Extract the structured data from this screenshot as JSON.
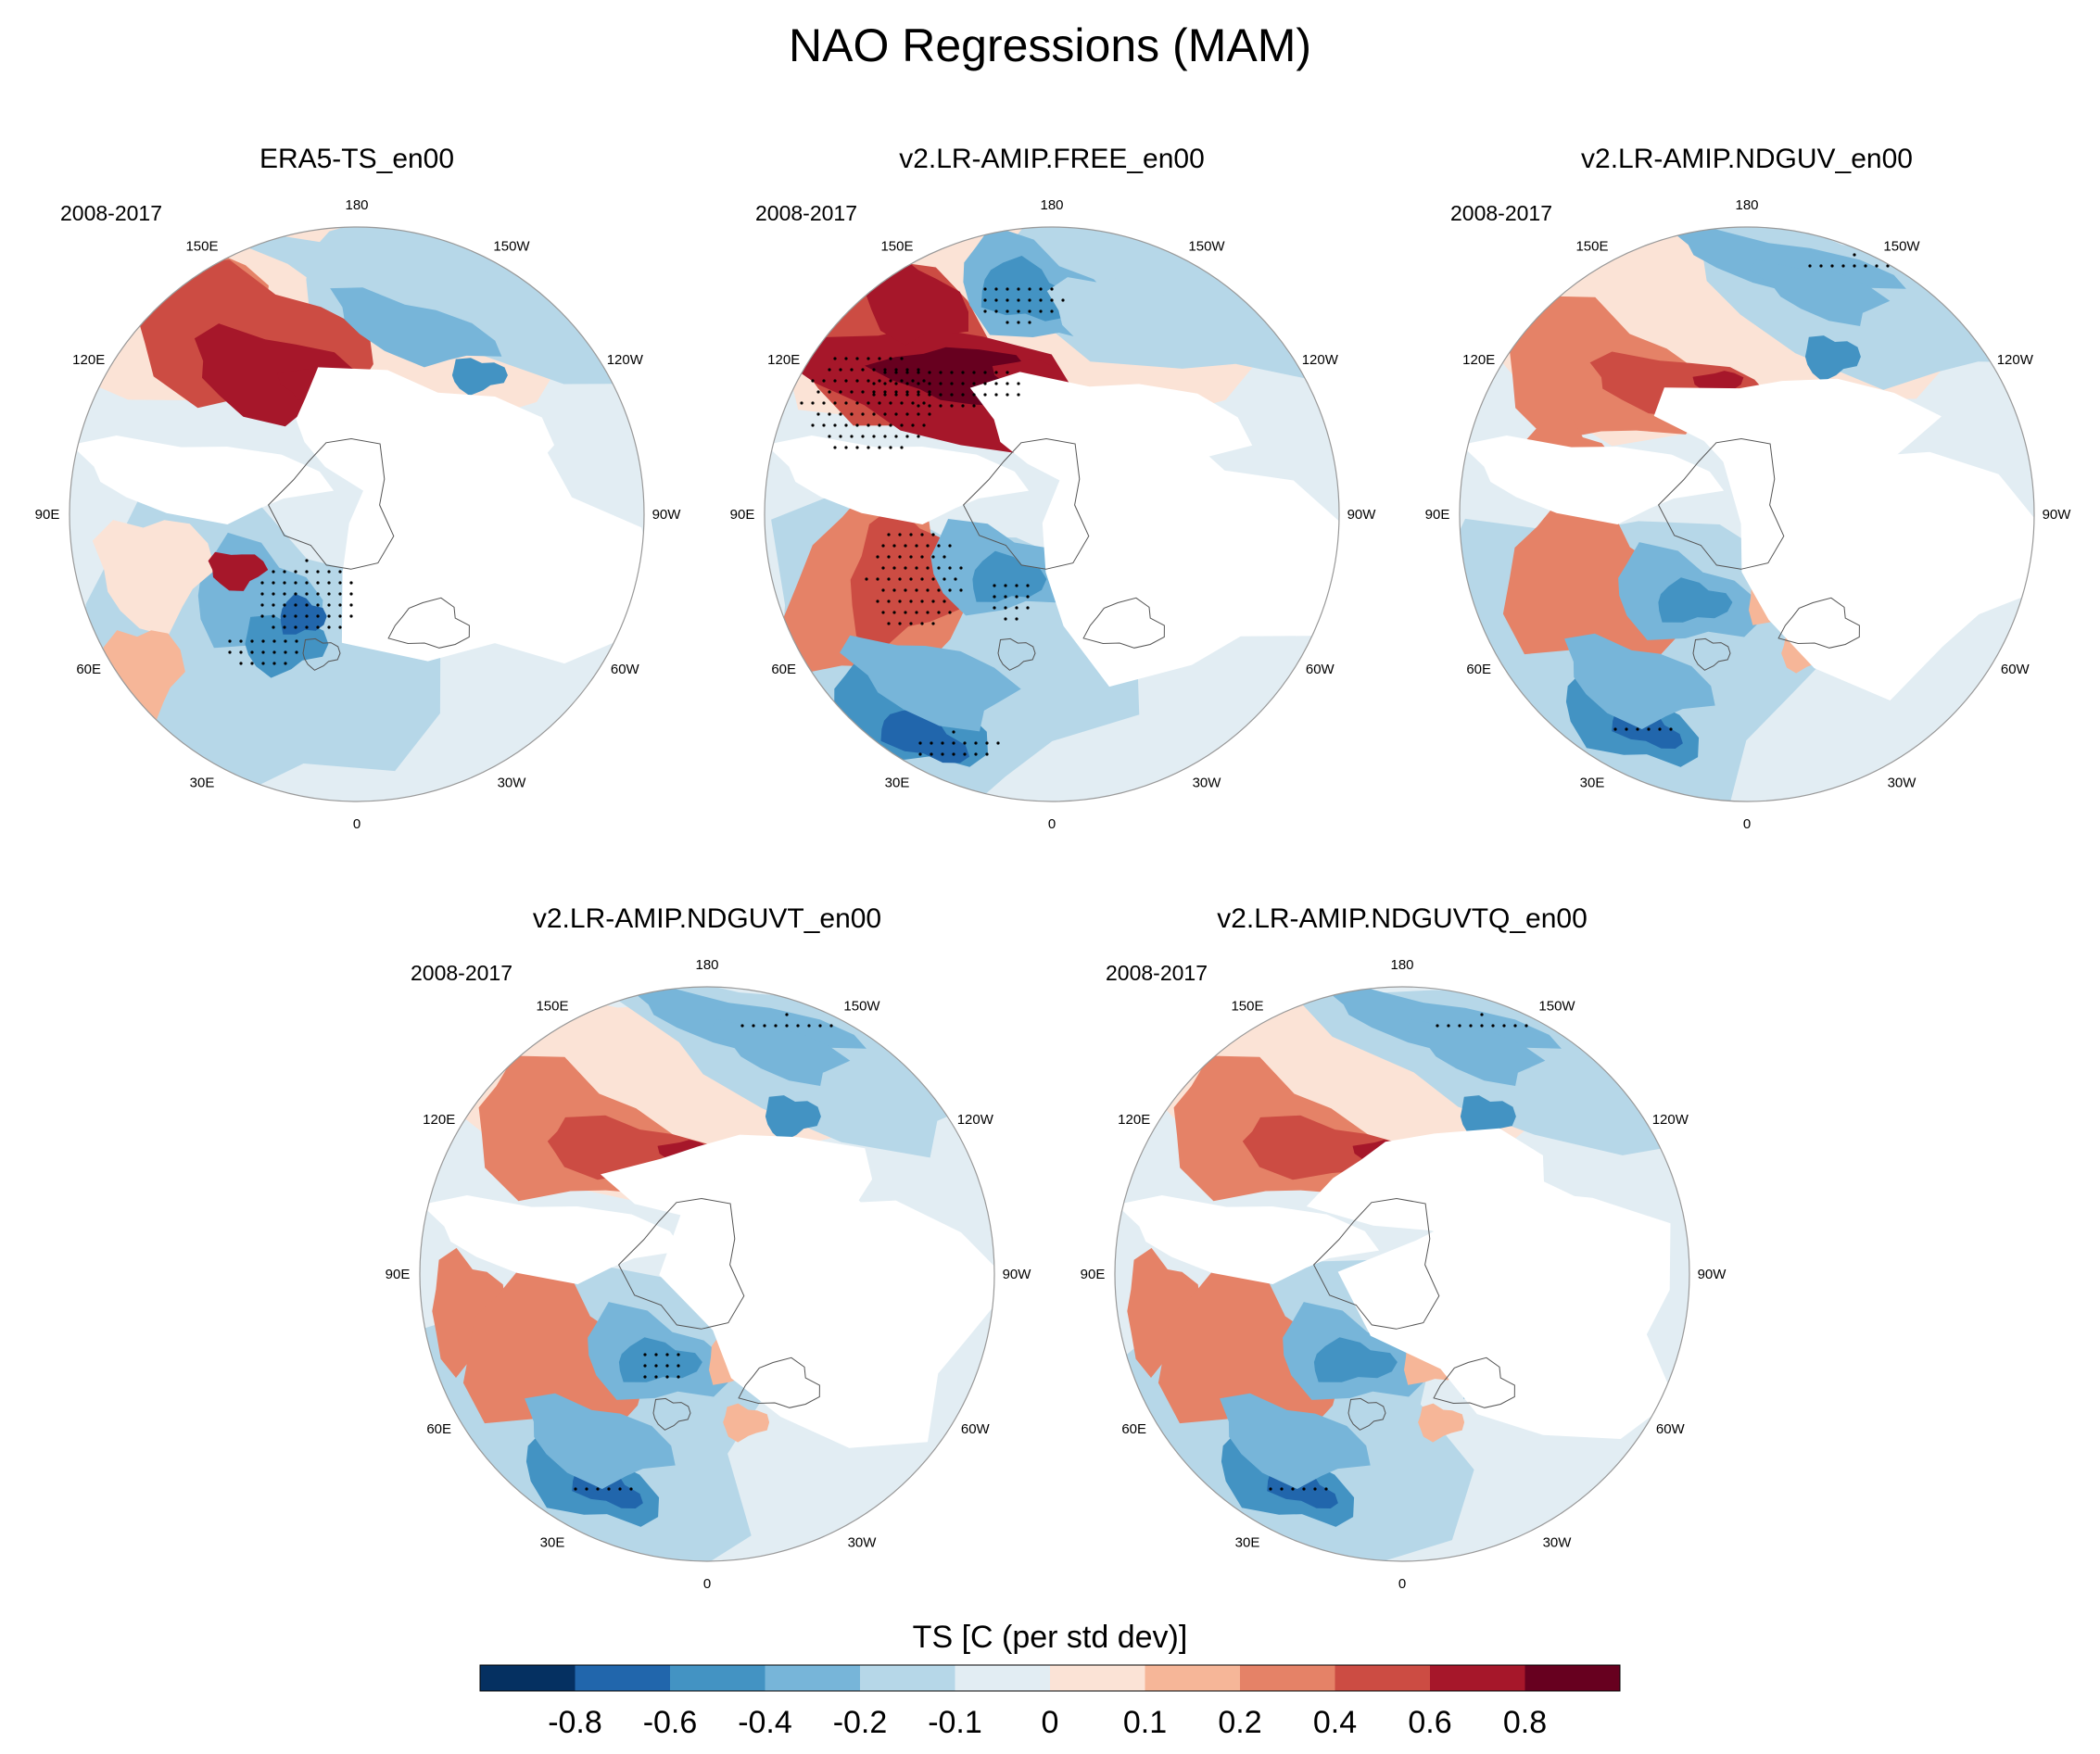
{
  "figure": {
    "title": "NAO Regressions (MAM)"
  },
  "panels": [
    {
      "title": "ERA5-TS_en00",
      "period": "2008-2017"
    },
    {
      "title": "v2.LR-AMIP.FREE_en00",
      "period": "2008-2017"
    },
    {
      "title": "v2.LR-AMIP.NDGUV_en00",
      "period": "2008-2017"
    },
    {
      "title": "v2.LR-AMIP.NDGUVT_en00",
      "period": "2008-2017"
    },
    {
      "title": "v2.LR-AMIP.NDGUVTQ_en00",
      "period": "2008-2017"
    }
  ],
  "longitude_labels": [
    "180",
    "150E",
    "120E",
    "90E",
    "60E",
    "30E",
    "0",
    "30W",
    "60W",
    "90W",
    "120W",
    "150W"
  ],
  "colorbar": {
    "title": "TS [C (per std dev)]",
    "levels": [
      "-0.8",
      "-0.6",
      "-0.4",
      "-0.2",
      "-0.1",
      "0",
      "0.1",
      "0.2",
      "0.4",
      "0.6",
      "0.8"
    ],
    "colors": [
      "#053061",
      "#2166ac",
      "#4393c3",
      "#77b5d9",
      "#b6d7e8",
      "#e2edf3",
      "#fbe3d6",
      "#f6b698",
      "#e58267",
      "#cc4c43",
      "#a6172a",
      "#67001f"
    ]
  },
  "palette": {
    "land_outline": "#555555",
    "stipple": "#000000",
    "circle": "#999999"
  }
}
